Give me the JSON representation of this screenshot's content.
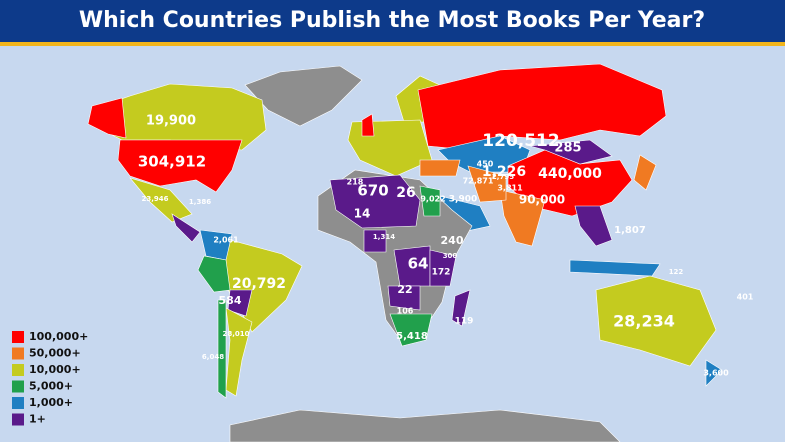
{
  "title": "Which Countries Publish the Most Books Per Year?",
  "legend": [
    {
      "label": "100,000+",
      "color": "#ff0000"
    },
    {
      "label": "50,000+",
      "color": "#f07a22"
    },
    {
      "label": "10,000+",
      "color": "#c4cb1f"
    },
    {
      "label": "5,000+",
      "color": "#21a04c"
    },
    {
      "label": "1,000+",
      "color": "#1f7fc2"
    },
    {
      "label": "1+",
      "color": "#5a1a8a"
    }
  ],
  "labels": [
    "120,512",
    "304,912",
    "19,900",
    "1,226",
    "285",
    "440,000",
    "90,000",
    "72,871",
    "3,811",
    "2,795",
    "450",
    "3,900",
    "9,022",
    "670",
    "26",
    "14",
    "240",
    "64",
    "172",
    "22",
    "106",
    "584",
    "20,792",
    "2,061",
    "28,234",
    "5,418",
    "119",
    "3,600",
    "401",
    "122",
    "1,807",
    "1,314",
    "23,946",
    "6,048",
    "28,010",
    "218",
    "300",
    "1,386"
  ]
}
